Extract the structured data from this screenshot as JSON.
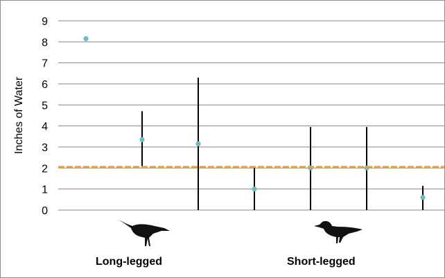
{
  "chart_data": {
    "type": "scatter",
    "title": "",
    "xlabel": "",
    "ylabel": "Inches of Water",
    "ylim": [
      0,
      9
    ],
    "yticks": [
      "0",
      "1",
      "2",
      "3",
      "4",
      "5",
      "6",
      "7",
      "8",
      "9"
    ],
    "grid": true,
    "x": [
      1,
      2,
      3,
      4,
      5,
      6,
      7
    ],
    "points": [
      {
        "x": 1,
        "y": 8.15,
        "low": null,
        "high": null
      },
      {
        "x": 2,
        "y": 3.35,
        "low": 2.05,
        "high": 4.7
      },
      {
        "x": 3,
        "y": 3.15,
        "low": 0,
        "high": 6.3
      },
      {
        "x": 4,
        "y": 1.0,
        "low": 0,
        "high": 2.0
      },
      {
        "x": 5,
        "y": 2.0,
        "low": 0,
        "high": 3.95
      },
      {
        "x": 6,
        "y": 2.0,
        "low": 0,
        "high": 3.95
      },
      {
        "x": 7,
        "y": 0.6,
        "low": 0,
        "high": 1.15
      }
    ],
    "reference_line": {
      "y": 2.05,
      "style": "dashed"
    },
    "groups": [
      {
        "label": "Long-legged",
        "icon": "long-legged-shorebird-icon"
      },
      {
        "label": "Short-legged",
        "icon": "short-legged-shorebird-icon"
      }
    ],
    "colors": {
      "point": "#6cbcc4",
      "error_bar": "#000000",
      "reference_line": "#e6a23c",
      "grid": "#868686",
      "bird": "#111111"
    }
  }
}
